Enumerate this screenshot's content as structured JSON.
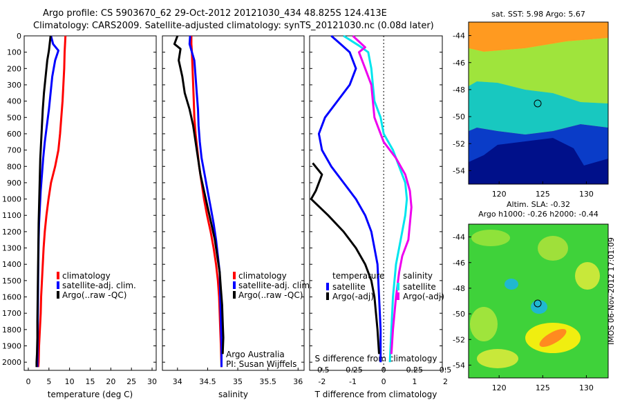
{
  "title_line1": "Argo profile: CS 5903670_62 29-Oct-2012 20121030_434 48.825S 124.413E",
  "title_line2": "Climatology: CARS2009. Satellite-adjusted climatology: synTS_20121030.nc (0.08d later)",
  "stamp": "IMOS 06-Nov-2012 17:01:09",
  "colors": {
    "climatology": "#ff0000",
    "satellite": "#0000ff",
    "argo": "#000000",
    "sat_sal": "#00e5ee",
    "argo_sal": "#ee00ee"
  },
  "chart_data": [
    {
      "type": "line",
      "xlabel": "temperature (deg C)",
      "xticks": [
        "0",
        "5",
        "10",
        "15",
        "20",
        "25",
        "30"
      ],
      "xlim": [
        -1,
        31
      ],
      "ylim": [
        0,
        2050
      ],
      "yticks": [
        "0",
        "100",
        "200",
        "300",
        "400",
        "500",
        "600",
        "700",
        "800",
        "900",
        "1000",
        "1100",
        "1200",
        "1300",
        "1400",
        "1500",
        "1600",
        "1700",
        "1800",
        "1900",
        "2000"
      ],
      "legend": [
        "climatology",
        "satellite-adj. clim.",
        "Argo(..raw -QC)"
      ],
      "series": [
        {
          "name": "climatology",
          "x": [
            9.0,
            8.9,
            8.8,
            8.7,
            8.5,
            8.3,
            8.0,
            7.7,
            7.3,
            6.5,
            5.5,
            4.9,
            4.4,
            4.0,
            3.7,
            3.5,
            3.3,
            3.1,
            3.0,
            2.8,
            2.6,
            2.5,
            2.4
          ],
          "y": [
            0,
            50,
            100,
            200,
            300,
            400,
            500,
            600,
            700,
            800,
            900,
            1000,
            1100,
            1200,
            1300,
            1400,
            1500,
            1600,
            1700,
            1800,
            1900,
            2000,
            2030
          ]
        },
        {
          "name": "satellite-adj. clim.",
          "x": [
            5.5,
            6.0,
            7.3,
            6.5,
            5.8,
            5.4,
            5.0,
            4.5,
            4.0,
            3.6,
            3.3,
            3.0,
            2.8,
            2.6,
            2.5,
            2.45,
            2.4,
            2.35,
            2.3,
            2.25,
            2.2,
            2.2
          ],
          "y": [
            0,
            50,
            90,
            150,
            250,
            350,
            450,
            550,
            650,
            750,
            850,
            950,
            1050,
            1150,
            1250,
            1350,
            1450,
            1600,
            1750,
            1900,
            2000,
            2030
          ]
        },
        {
          "name": "Argo(..raw -QC)",
          "x": [
            5.4,
            5.0,
            4.6,
            4.2,
            3.8,
            3.5,
            3.3,
            3.1,
            2.9,
            2.8,
            2.7,
            2.6,
            2.5,
            2.45,
            2.4,
            2.35,
            2.3,
            2.25,
            2.2,
            2.2,
            2.1,
            2.0,
            2.0
          ],
          "y": [
            0,
            90,
            150,
            250,
            350,
            450,
            550,
            650,
            750,
            850,
            950,
            1050,
            1150,
            1250,
            1350,
            1450,
            1550,
            1650,
            1750,
            1850,
            1950,
            2000,
            2030
          ]
        }
      ]
    },
    {
      "type": "line",
      "xlabel": "salinity",
      "xticks": [
        "34",
        "34.5",
        "35",
        "35.5",
        "36"
      ],
      "xlim": [
        33.75,
        36.1
      ],
      "legend": [
        "climatology",
        "satellite-adj. clim.",
        "Argo(..raw -QC)"
      ],
      "annotation": [
        "Argo Australia",
        "PI: Susan Wijffels"
      ],
      "series": [
        {
          "name": "climatology",
          "x": [
            34.23,
            34.23,
            34.24,
            34.25,
            34.26,
            34.27,
            34.28,
            34.3,
            34.33,
            34.36,
            34.4,
            34.44,
            34.49,
            34.55,
            34.6,
            34.64,
            34.67,
            34.69,
            34.7,
            34.71,
            34.72,
            34.73
          ],
          "y": [
            0,
            50,
            100,
            200,
            300,
            400,
            500,
            600,
            700,
            800,
            900,
            1000,
            1100,
            1200,
            1300,
            1400,
            1500,
            1600,
            1700,
            1800,
            1900,
            2030
          ]
        },
        {
          "name": "satellite-adj. clim.",
          "x": [
            34.21,
            34.2,
            34.24,
            34.28,
            34.3,
            34.32,
            34.34,
            34.35,
            34.37,
            34.4,
            34.45,
            34.5,
            34.55,
            34.6,
            34.64,
            34.67,
            34.7,
            34.71,
            34.72,
            34.73,
            34.73
          ],
          "y": [
            0,
            50,
            100,
            150,
            250,
            350,
            450,
            550,
            650,
            750,
            850,
            950,
            1050,
            1150,
            1250,
            1350,
            1450,
            1600,
            1750,
            1900,
            2030
          ]
        },
        {
          "name": "Argo(..raw -QC)",
          "x": [
            34.0,
            33.95,
            34.05,
            34.02,
            34.08,
            34.12,
            34.2,
            34.26,
            34.3,
            34.34,
            34.38,
            34.44,
            34.5,
            34.56,
            34.62,
            34.66,
            34.7,
            34.72,
            34.74,
            34.75,
            34.76,
            34.75
          ],
          "y": [
            0,
            50,
            80,
            150,
            250,
            350,
            450,
            550,
            650,
            750,
            850,
            950,
            1050,
            1150,
            1250,
            1350,
            1450,
            1550,
            1650,
            1750,
            1850,
            1950
          ]
        }
      ]
    },
    {
      "type": "line",
      "xlabel": "T difference from climatology",
      "xlabel2": "S difference from climatology",
      "xticks": [
        "-2",
        "-1",
        "0",
        "1",
        "2"
      ],
      "xticks2": [
        "-0.5",
        "-0.25",
        "0",
        "0.25",
        "0.5"
      ],
      "xlim": [
        -2.4,
        1.9
      ],
      "legend_left_title": "temperature",
      "legend_left": [
        "satellite",
        "Argo(-adj)"
      ],
      "legend_right_title": "salinity",
      "legend_right": [
        "satellite",
        "Argo(-adj)"
      ],
      "series": [
        {
          "name": "satellite",
          "x": [
            -1.7,
            -1.4,
            -1.1,
            -0.9,
            -1.1,
            -1.5,
            -1.9,
            -2.1,
            -2.0,
            -1.7,
            -1.3,
            -0.9,
            -0.6,
            -0.4,
            -0.3,
            -0.2,
            -0.15,
            -0.1,
            -0.1
          ],
          "y": [
            0,
            50,
            100,
            200,
            300,
            400,
            500,
            600,
            700,
            800,
            900,
            1000,
            1100,
            1200,
            1300,
            1400,
            1600,
            1800,
            2000
          ]
        },
        {
          "name": "Argo(-adj)",
          "x": [
            -2.3,
            -2.0,
            -2.2,
            -2.35,
            -1.8,
            -1.3,
            -0.9,
            -0.6,
            -0.4,
            -0.3,
            -0.25,
            -0.2,
            -0.15
          ],
          "y": [
            780,
            850,
            950,
            1000,
            1100,
            1200,
            1300,
            1400,
            1500,
            1600,
            1700,
            1800,
            1950
          ]
        },
        {
          "name": "satellite",
          "x": [
            -1.3,
            -0.8,
            -0.5,
            -0.4,
            -0.35,
            -0.3,
            -0.1,
            0.0,
            0.3,
            0.5,
            0.7,
            0.75,
            0.7,
            0.6,
            0.5,
            0.4,
            0.35,
            0.3,
            0.25,
            0.2
          ],
          "y": [
            0,
            60,
            100,
            200,
            300,
            400,
            500,
            600,
            700,
            800,
            900,
            1000,
            1100,
            1200,
            1300,
            1400,
            1500,
            1600,
            1800,
            2000
          ]
        },
        {
          "name": "Argo(-adj)",
          "x": [
            -1.0,
            -0.6,
            -0.8,
            -0.6,
            -0.4,
            -0.35,
            -0.3,
            -0.2,
            0.0,
            0.4,
            0.7,
            0.85,
            0.9,
            0.85,
            0.8,
            0.6,
            0.5,
            0.4,
            0.3,
            0.25
          ],
          "y": [
            0,
            70,
            100,
            200,
            300,
            400,
            500,
            550,
            650,
            750,
            850,
            950,
            1050,
            1150,
            1250,
            1350,
            1450,
            1600,
            1800,
            1950
          ]
        }
      ]
    },
    {
      "type": "heatmap",
      "title": "sat. SST: 5.98  Argo: 5.67",
      "xticks": [
        "120",
        "125",
        "130"
      ],
      "yticks": [
        "-44",
        "-46",
        "-48",
        "-50",
        "-52",
        "-54"
      ],
      "xlim": [
        116.5,
        132.5
      ],
      "ylim": [
        -55,
        -43
      ]
    },
    {
      "type": "heatmap",
      "title_line1": "Altim. SLA: -0.32",
      "title_line2": "Argo h1000: -0.26  h2000: -0.44",
      "xticks": [
        "120",
        "125",
        "130"
      ],
      "yticks": [
        "-44",
        "-46",
        "-48",
        "-50",
        "-52",
        "-54"
      ],
      "xlim": [
        116.5,
        132.5
      ],
      "ylim": [
        -55,
        -43
      ]
    }
  ]
}
